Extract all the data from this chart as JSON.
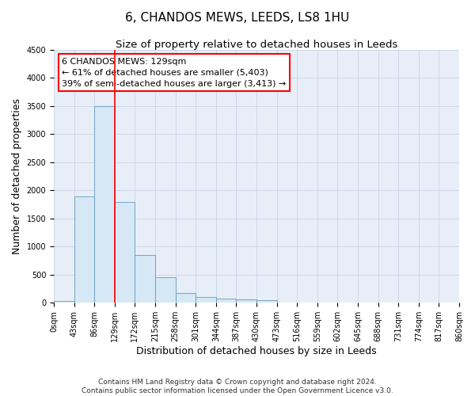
{
  "title": "6, CHANDOS MEWS, LEEDS, LS8 1HU",
  "subtitle": "Size of property relative to detached houses in Leeds",
  "xlabel": "Distribution of detached houses by size in Leeds",
  "ylabel": "Number of detached properties",
  "bin_edges": [
    0,
    43,
    86,
    129,
    172,
    215,
    258,
    301,
    344,
    387,
    430,
    473,
    516,
    559,
    602,
    645,
    688,
    731,
    774,
    817,
    860
  ],
  "bar_heights": [
    30,
    1900,
    3500,
    1800,
    850,
    450,
    175,
    100,
    70,
    55,
    45,
    10,
    5,
    5,
    5,
    5,
    5,
    5,
    5,
    5
  ],
  "bar_color": "#d6e8f5",
  "bar_edge_color": "#6699bb",
  "red_line_x": 129,
  "annotation_line1": "6 CHANDOS MEWS: 129sqm",
  "annotation_line2": "← 61% of detached houses are smaller (5,403)",
  "annotation_line3": "39% of semi-detached houses are larger (3,413) →",
  "annotation_box_color": "white",
  "annotation_box_edge_color": "red",
  "ylim": [
    0,
    4500
  ],
  "yticks": [
    0,
    500,
    1000,
    1500,
    2000,
    2500,
    3000,
    3500,
    4000,
    4500
  ],
  "footer": "Contains HM Land Registry data © Crown copyright and database right 2024.\nContains public sector information licensed under the Open Government Licence v3.0.",
  "bg_color": "#ffffff",
  "plot_bg_color": "#e8eef8",
  "grid_color": "#c8d4e8",
  "title_fontsize": 11,
  "subtitle_fontsize": 9.5,
  "axis_label_fontsize": 9,
  "tick_fontsize": 7,
  "annotation_fontsize": 8,
  "footer_fontsize": 6.5
}
